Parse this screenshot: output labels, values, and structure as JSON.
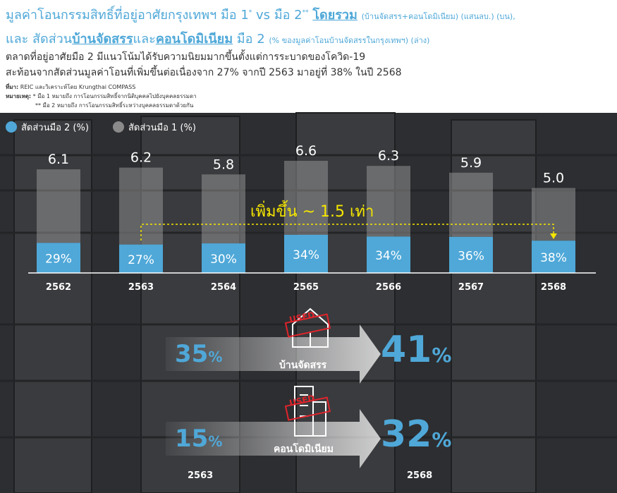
{
  "header": {
    "line1_main": "มูลค่าโอนกรรมสิทธิ์ที่อยู่อาศัยกรุงเทพฯ มือ 1",
    "line1_star1": "*",
    "line1_vs": " vs มือ 2",
    "line1_star2": "**",
    "line1_bold": "โดยรวม",
    "line1_small": "(บ้านจัดสรร+คอนโดมิเนียม) (แสนลบ.) (บน),",
    "line2_a": "และ สัดส่วน",
    "line2_b": "บ้านจัดสรร",
    "line2_c": "และ",
    "line2_d": "คอนโดมิเนียม",
    "line2_e": " มือ 2",
    "line2_small": "(% ของมูลค่าโอนบ้านจัดสรรในกรุงเทพฯ) (ล่าง)",
    "subtitle1": "ตลาดที่อยู่อาศัยมือ 2 มีแนวโน้มได้รับความนิยมมากขึ้นตั้งแต่การระบาดของโควิด-19",
    "subtitle2": "สะท้อนจากสัดส่วนมูลค่าโอนที่เพิ่มขึ้นต่อเนื่องจาก 27% จากปี 2563 มาอยู่ที่ 38% ในปี 2568",
    "source_label": "ที่มา:",
    "source_text": "REIC และวิเคราะห์โดย Krungthai COMPASS",
    "notes_label": "หมายเหตุ:",
    "note1": "* มือ 1 หมายถึง การโอนกรรมสิทธิ์จากนิติบุคคลไปยังบุคคลธรรมดา",
    "note2": "** มือ 2 หมายถึง การโอนกรรมสิทธิ์ระหว่างบุคคลธรรมดาด้วยกัน"
  },
  "colors": {
    "accent": "#4fa8d8",
    "second_hand_bar": "#4fa8d8",
    "first_hand_bar": "#a6a6a6",
    "highlight": "#f5e600",
    "used_stamp": "#e0242c"
  },
  "chart_data": {
    "type": "bar",
    "categories": [
      "2562",
      "2563",
      "2564",
      "2565",
      "2566",
      "2567",
      "2568"
    ],
    "series": [
      {
        "name": "สัดส่วนมือ 2 (%)",
        "values": [
          29,
          27,
          30,
          34,
          34,
          36,
          38
        ]
      },
      {
        "name": "สัดส่วนมือ 1 (%)",
        "values": [
          71,
          73,
          70,
          66,
          66,
          64,
          62
        ]
      }
    ],
    "totals": [
      6.1,
      6.2,
      5.8,
      6.6,
      6.3,
      5.9,
      5.0
    ],
    "total_labels": [
      "6.1",
      "6.2",
      "5.8",
      "6.6",
      "6.3",
      "5.9",
      "5.0"
    ],
    "share_labels": [
      "29%",
      "27%",
      "30%",
      "34%",
      "34%",
      "36%",
      "38%"
    ],
    "annotation": "เพิ่มขึ้น ~ 1.5 เท่า",
    "legend_position": "top-left",
    "ylim": [
      0,
      6.6
    ]
  },
  "comparison": {
    "house": {
      "label": "บ้านจัดสรร",
      "from_value": "35",
      "to_value": "41",
      "pct": "%"
    },
    "condo": {
      "label": "คอนโดมิเนียม",
      "from_value": "15",
      "to_value": "32",
      "pct": "%"
    },
    "stamp_text": "USED",
    "year_from": "2563",
    "year_to": "2568"
  }
}
